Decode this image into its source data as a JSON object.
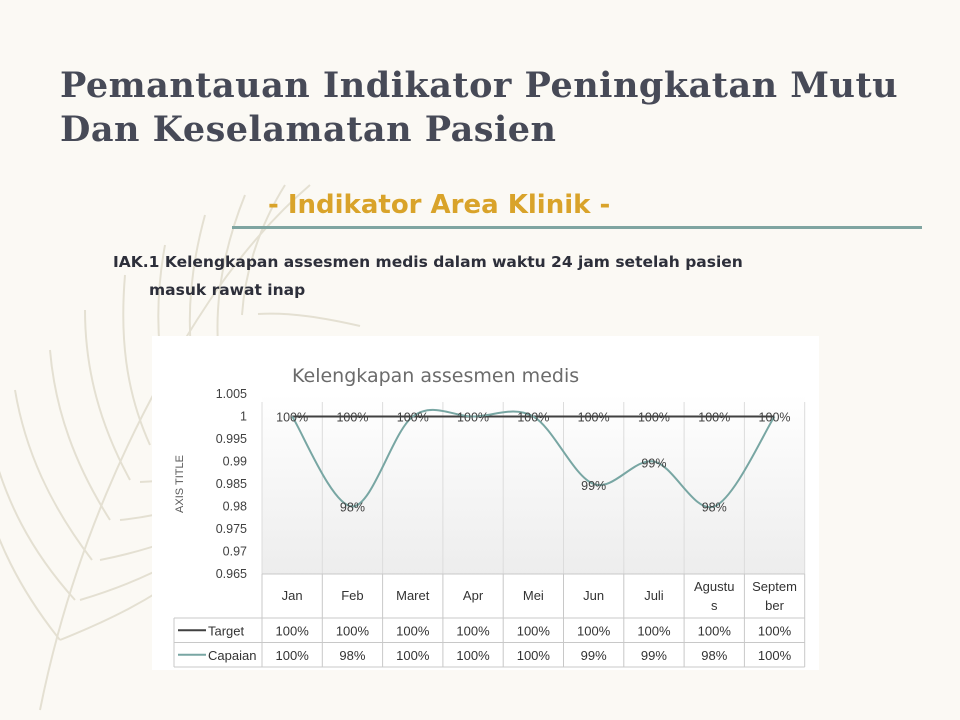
{
  "slide": {
    "title_lines": [
      "Pemantauan Indikator Peningkatan Mutu",
      "Dan Keselamatan Pasien"
    ],
    "subtitle": "- Indikator Area Klinik -",
    "indicator_lines": [
      "IAK.1 Kelengkapan assesmen medis dalam waktu 24 jam setelah pasien",
      "masuk rawat inap"
    ]
  },
  "chart_data": {
    "type": "line",
    "title": "Kelengkapan assesmen medis",
    "ylabel": "AXIS TITLE",
    "xlabel": "",
    "ylim": [
      0.965,
      1.005
    ],
    "yticks": [
      "1.005",
      "1",
      "0.995",
      "0.99",
      "0.985",
      "0.98",
      "0.975",
      "0.97",
      "0.965"
    ],
    "categories": [
      "Jan",
      "Feb",
      "Maret",
      "Apr",
      "Mei",
      "Jun",
      "Juli",
      "Agustus",
      "September"
    ],
    "category_lines": [
      [
        "Jan"
      ],
      [
        "Feb"
      ],
      [
        "Maret"
      ],
      [
        "Apr"
      ],
      [
        "Mei"
      ],
      [
        "Jun"
      ],
      [
        "Juli"
      ],
      [
        "Agustu",
        "s"
      ],
      [
        "Septem",
        "ber"
      ]
    ],
    "series": [
      {
        "name": "Target",
        "color": "#404040",
        "values": [
          1,
          1,
          1,
          1,
          1,
          1,
          1,
          1,
          1
        ],
        "labels": [
          "100%",
          "100%",
          "100%",
          "100%",
          "100%",
          "100%",
          "100%",
          "100%",
          "100%"
        ]
      },
      {
        "name": "Capaian",
        "color": "#78a6a3",
        "values": [
          1,
          0.98,
          1,
          1,
          1,
          0.985,
          0.99,
          0.98,
          1
        ],
        "labels": [
          "100%",
          "98%",
          "100%",
          "100%",
          "100%",
          "99%",
          "99%",
          "98%",
          "100%"
        ]
      }
    ],
    "grid": false,
    "legend": "data-table"
  },
  "colors": {
    "accent": "#d9a32a",
    "divider": "#7fa5a1",
    "title": "#474a57",
    "background": "#fbf9f4"
  }
}
